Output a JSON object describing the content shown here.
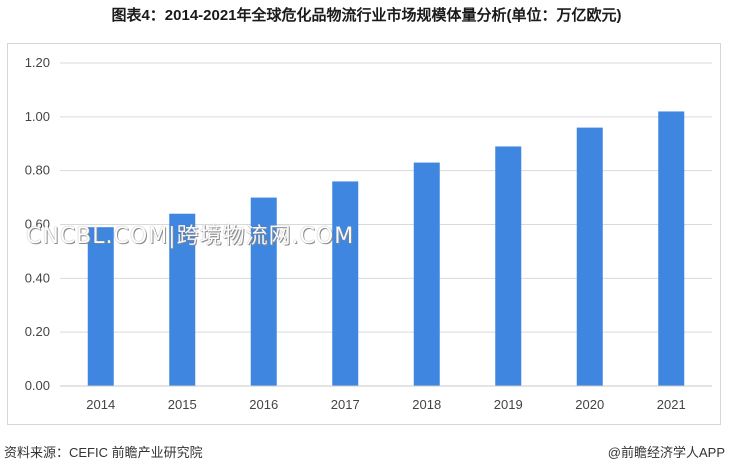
{
  "title": "图表4：2014-2021年全球危化品物流行业市场规模体量分析(单位：万亿欧元)",
  "watermark_text": "CNCBL.COM|跨境物流网.COM",
  "source": "资料来源：CEFIC 前瞻产业研究院",
  "brand": "@前瞻经济学人APP",
  "chart_data": {
    "type": "bar",
    "title": "图表4：2014-2021年全球危化品物流行业市场规模体量分析(单位：万亿欧元)",
    "xlabel": "",
    "ylabel": "",
    "categories": [
      "2014",
      "2015",
      "2016",
      "2017",
      "2018",
      "2019",
      "2020",
      "2021"
    ],
    "values": [
      0.59,
      0.64,
      0.7,
      0.76,
      0.83,
      0.89,
      0.96,
      1.02
    ],
    "ylim": [
      0,
      1.2
    ],
    "yticks": [
      "0.00",
      "0.20",
      "0.40",
      "0.60",
      "0.80",
      "1.00",
      "1.20"
    ],
    "grid": true,
    "bar_color": "#3f86e0",
    "grid_color": "#d9d9d9"
  }
}
